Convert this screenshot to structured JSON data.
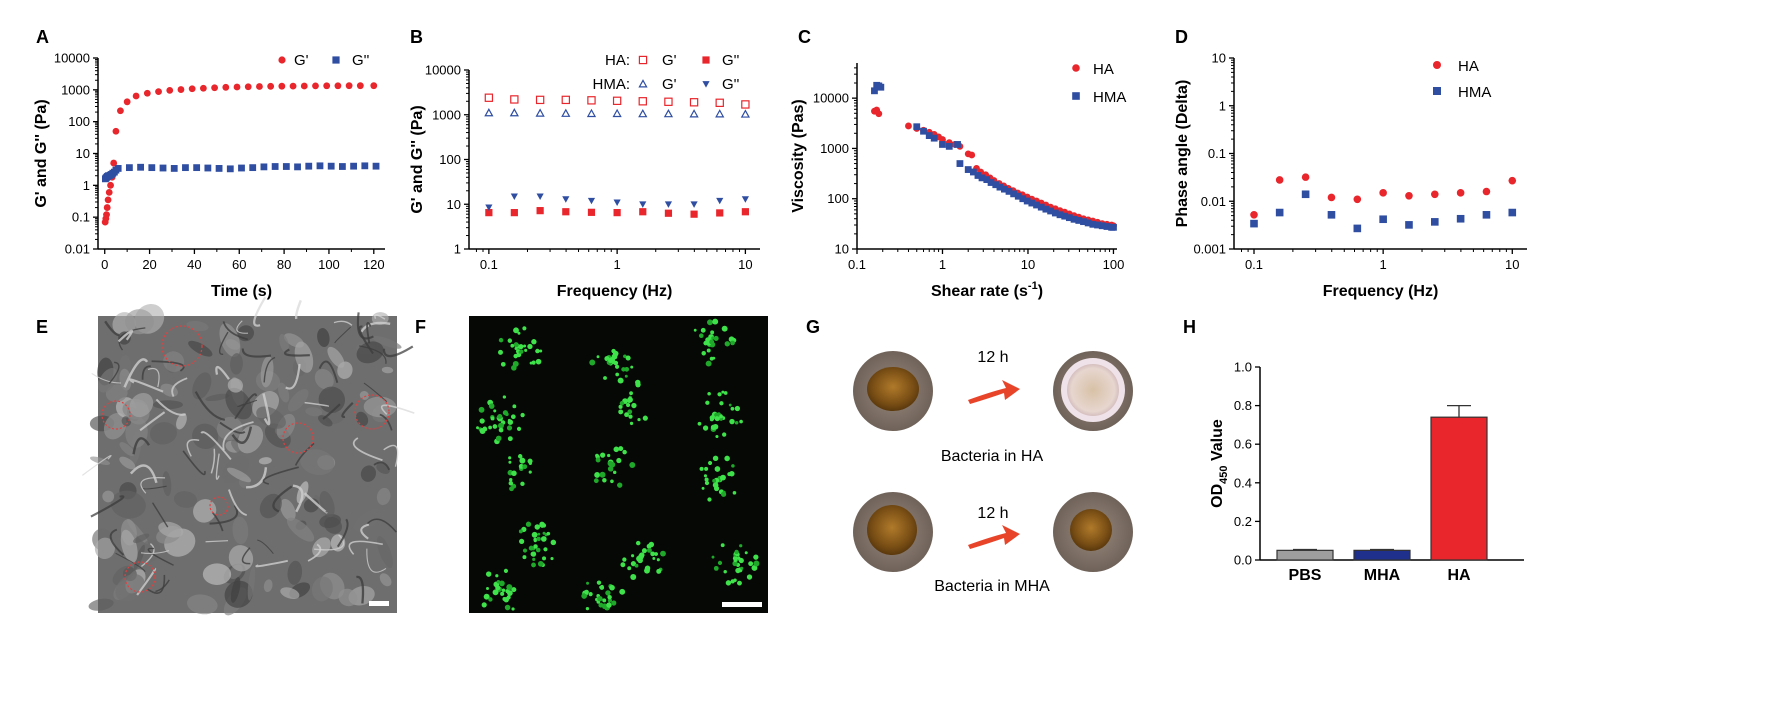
{
  "panels": {
    "A": "A",
    "B": "B",
    "C": "C",
    "D": "D",
    "E": "E",
    "F": "F",
    "G": "G",
    "H": "H"
  },
  "colors": {
    "red": "#e8262c",
    "blue": "#2f4ea2",
    "gray": "#9e9e9e",
    "navy": "#1f2f8c"
  },
  "chart_data": [
    {
      "panel": "A",
      "type": "scatter",
      "xlabel": "Time (s)",
      "ylabel": "G' and G'' (Pa)",
      "yscale": "log",
      "xlim": [
        -3,
        125
      ],
      "ylim": [
        0.01,
        10000
      ],
      "xticks": [
        "0",
        "20",
        "40",
        "60",
        "80",
        "100",
        "120"
      ],
      "yticks": [
        "0.01",
        "0.1",
        "1",
        "10",
        "100",
        "1000",
        "10000"
      ],
      "legend_position": "top-right",
      "series": [
        {
          "name": "G'",
          "marker": "circle",
          "color": "#e8262c",
          "x": [
            0.2,
            0.5,
            0.8,
            1.1,
            1.5,
            2,
            2.6,
            3.3,
            4,
            5,
            7,
            10,
            14,
            19,
            24,
            29,
            34,
            39,
            44,
            49,
            54,
            59,
            64,
            69,
            74,
            79,
            84,
            89,
            94,
            99,
            104,
            109,
            114,
            120
          ],
          "y": [
            0.07,
            0.09,
            0.12,
            0.2,
            0.35,
            0.6,
            1.0,
            1.8,
            5,
            50,
            220,
            420,
            640,
            780,
            880,
            960,
            1020,
            1080,
            1120,
            1160,
            1200,
            1230,
            1250,
            1270,
            1290,
            1300,
            1310,
            1320,
            1330,
            1340,
            1340,
            1350,
            1350,
            1350
          ]
        },
        {
          "name": "G''",
          "marker": "square",
          "color": "#2f4ea2",
          "x": [
            0.3,
            0.6,
            0.9,
            1.2,
            1.6,
            2,
            2.5,
            3,
            3.6,
            4.3,
            5,
            6,
            11,
            16,
            21,
            26,
            31,
            36,
            41,
            46,
            51,
            56,
            61,
            66,
            71,
            76,
            81,
            86,
            91,
            96,
            101,
            106,
            111,
            116,
            121
          ],
          "y": [
            1.6,
            1.7,
            1.8,
            1.9,
            2.0,
            2.0,
            2.1,
            2.2,
            2.4,
            2.6,
            3.0,
            3.4,
            3.6,
            3.7,
            3.6,
            3.5,
            3.4,
            3.6,
            3.6,
            3.5,
            3.4,
            3.3,
            3.5,
            3.6,
            3.8,
            3.9,
            3.9,
            3.8,
            4.0,
            4.1,
            4.0,
            3.9,
            4.0,
            4.1,
            4.0
          ]
        }
      ]
    },
    {
      "panel": "B",
      "type": "scatter",
      "xlabel": "Frequency (Hz)",
      "ylabel": "G' and G'' (Pa)",
      "xscale": "log",
      "yscale": "log",
      "xlim": [
        0.07,
        13
      ],
      "ylim": [
        1,
        10000
      ],
      "xticks": [
        "0.1",
        "1",
        "10"
      ],
      "yticks": [
        "1",
        "10",
        "100",
        "1000",
        "10000"
      ],
      "legend_position": "top-right",
      "legend": {
        "row1_label": "HA:",
        "row2_label": "HMA:",
        "g1": "G'",
        "g2": "G''"
      },
      "series": [
        {
          "group": "HA",
          "modulus": "G'",
          "marker": "open-square",
          "color": "#e8262c",
          "x": [
            0.1,
            0.158,
            0.251,
            0.398,
            0.631,
            1,
            1.585,
            2.512,
            3.981,
            6.31,
            10
          ],
          "y": [
            2400,
            2200,
            2150,
            2150,
            2100,
            2050,
            2000,
            1950,
            1900,
            1850,
            1700
          ]
        },
        {
          "group": "HMA",
          "modulus": "G'",
          "marker": "open-triangle",
          "color": "#2f4ea2",
          "x": [
            0.1,
            0.158,
            0.251,
            0.398,
            0.631,
            1,
            1.585,
            2.512,
            3.981,
            6.31,
            10
          ],
          "y": [
            1100,
            1100,
            1080,
            1070,
            1060,
            1060,
            1050,
            1050,
            1040,
            1040,
            1030
          ]
        },
        {
          "group": "HA",
          "modulus": "G''",
          "marker": "square",
          "color": "#e8262c",
          "x": [
            0.1,
            0.158,
            0.251,
            0.398,
            0.631,
            1,
            1.585,
            2.512,
            3.981,
            6.31,
            10
          ],
          "y": [
            6.5,
            6.5,
            7.2,
            6.8,
            6.6,
            6.5,
            6.8,
            6.3,
            6.0,
            6.4,
            6.8
          ]
        },
        {
          "group": "HMA",
          "modulus": "G''",
          "marker": "triangle-down",
          "color": "#2f4ea2",
          "x": [
            0.1,
            0.158,
            0.251,
            0.398,
            0.631,
            1,
            1.585,
            2.512,
            3.981,
            6.31,
            10
          ],
          "y": [
            8.5,
            15,
            15,
            13,
            12,
            11,
            10,
            10,
            10,
            12,
            13
          ]
        }
      ]
    },
    {
      "panel": "C",
      "type": "scatter",
      "xlabel": "Shear rate (s",
      "xlabel_sup": "-1",
      "xlabel_end": ")",
      "ylabel": "Viscosity (Pas)",
      "xscale": "log",
      "yscale": "log",
      "xlim": [
        0.1,
        110
      ],
      "ylim": [
        10,
        50000
      ],
      "xticks": [
        "0.1",
        "1",
        "10",
        "100"
      ],
      "yticks": [
        "10",
        "100",
        "1000",
        "10000"
      ],
      "legend_position": "top-right",
      "series": [
        {
          "name": "HA",
          "marker": "circle",
          "color": "#e8262c",
          "x": [
            0.16,
            0.17,
            0.18,
            0.4,
            0.5,
            0.6,
            0.7,
            0.8,
            0.9,
            1.0,
            1.2,
            1.4,
            1.6,
            2.0,
            2.2,
            2.5,
            2.8,
            3.2,
            3.6,
            4.0,
            4.6,
            5.2,
            5.9,
            6.7,
            7.6,
            8.6,
            9.8,
            11.1,
            12.6,
            14.3,
            16.2,
            18.4,
            20.9,
            23.7,
            26.9,
            30.5,
            34.6,
            39.3,
            44.6,
            50.6,
            57.4,
            65.1,
            73.9,
            83.9,
            95.2,
            100
          ],
          "y": [
            5500,
            5800,
            4900,
            2800,
            2500,
            2300,
            2100,
            1900,
            1700,
            1500,
            1300,
            1200,
            1100,
            780,
            740,
            400,
            340,
            300,
            260,
            230,
            200,
            180,
            160,
            145,
            130,
            120,
            108,
            98,
            90,
            82,
            75,
            68,
            63,
            58,
            54,
            50,
            46,
            43,
            40,
            38,
            36,
            34,
            32,
            31,
            30,
            29
          ]
        },
        {
          "name": "HMA",
          "marker": "square",
          "color": "#2f4ea2",
          "x": [
            0.16,
            0.17,
            0.18,
            0.19,
            0.5,
            0.6,
            0.7,
            0.8,
            1.0,
            1.2,
            1.5,
            1.6,
            2.0,
            2.3,
            2.6,
            2.9,
            3.3,
            3.7,
            4.2,
            4.7,
            5.3,
            6.0,
            6.8,
            7.7,
            8.7,
            9.8,
            11.1,
            12.6,
            14.3,
            16.2,
            18.4,
            20.9,
            23.7,
            26.9,
            30.5,
            34.6,
            39.3,
            44.6,
            50.6,
            57.4,
            65.1,
            73.9,
            83.9,
            95.2,
            100
          ],
          "y": [
            14000,
            18000,
            17500,
            16500,
            2700,
            2200,
            1800,
            1600,
            1200,
            1100,
            1200,
            500,
            380,
            340,
            290,
            260,
            240,
            210,
            190,
            170,
            155,
            140,
            125,
            112,
            100,
            90,
            82,
            75,
            68,
            62,
            57,
            52,
            48,
            45,
            42,
            39,
            37,
            35,
            33,
            31,
            30,
            29,
            28,
            27,
            27
          ]
        }
      ]
    },
    {
      "panel": "D",
      "type": "scatter",
      "xlabel": "Frequency (Hz)",
      "ylabel": "Phase angle (Delta)",
      "xscale": "log",
      "yscale": "log",
      "xlim": [
        0.07,
        13
      ],
      "ylim": [
        0.001,
        10
      ],
      "xticks": [
        "0.1",
        "1",
        "10"
      ],
      "yticks": [
        "0.001",
        "0.01",
        "0.1",
        "1",
        "10"
      ],
      "legend_position": "top-right",
      "series": [
        {
          "name": "HA",
          "marker": "circle",
          "color": "#e8262c",
          "x": [
            0.1,
            0.158,
            0.251,
            0.398,
            0.631,
            1,
            1.585,
            2.512,
            3.981,
            6.31,
            10
          ],
          "y": [
            0.0052,
            0.028,
            0.032,
            0.012,
            0.011,
            0.015,
            0.013,
            0.014,
            0.015,
            0.016,
            0.027
          ]
        },
        {
          "name": "HMA",
          "marker": "square",
          "color": "#2f4ea2",
          "x": [
            0.1,
            0.158,
            0.251,
            0.398,
            0.631,
            1,
            1.585,
            2.512,
            3.981,
            6.31,
            10
          ],
          "y": [
            0.0034,
            0.0058,
            0.014,
            0.0052,
            0.0027,
            0.0042,
            0.0032,
            0.0037,
            0.0043,
            0.0052,
            0.0058
          ]
        }
      ]
    },
    {
      "panel": "H",
      "type": "bar",
      "ylabel_main": "OD",
      "ylabel_sub": "450",
      "ylabel_end": " Value",
      "ylim": [
        0,
        1.0
      ],
      "yticks": [
        "0.0",
        "0.2",
        "0.4",
        "0.6",
        "0.8",
        "1.0"
      ],
      "categories": [
        "PBS",
        "MHA",
        "HA"
      ],
      "values": [
        0.05,
        0.05,
        0.74
      ],
      "errors": [
        0.004,
        0.004,
        0.06
      ],
      "bar_colors": [
        "#9e9e9e",
        "#1f2f8c",
        "#e8262c"
      ]
    }
  ],
  "panel_G": {
    "time_label_1": "12 h",
    "time_label_2": "12 h",
    "caption_1": "Bacteria in HA",
    "caption_2": "Bacteria in MHA"
  }
}
